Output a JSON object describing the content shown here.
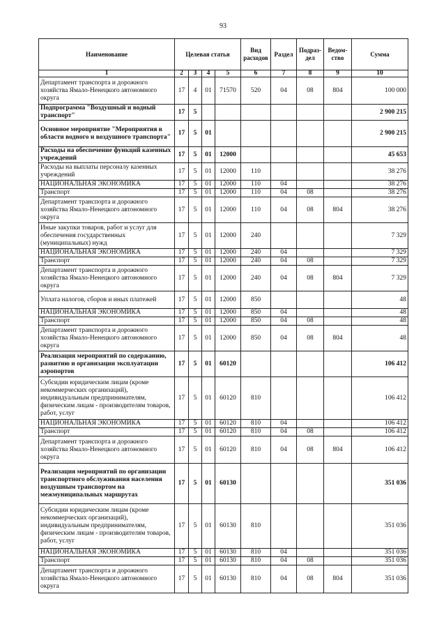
{
  "page_number": "93",
  "table": {
    "header": [
      "Наименование",
      "Целевая статья",
      "Вид\nрасходов",
      "Раздел",
      "Подраз-\nдел",
      "Ведом-\nство",
      "Сумма"
    ],
    "number_row": [
      "1",
      "2",
      "3",
      "4",
      "5",
      "6",
      "7",
      "8",
      "9",
      "10"
    ],
    "rows": [
      {
        "bold": false,
        "cells": [
          "Департамент транспорта и дорожного хозяйства Ямало-Ненецкого автономного округа",
          "17",
          "4",
          "01",
          "71570",
          "520",
          "04",
          "08",
          "804",
          "100 000"
        ]
      },
      {
        "bold": true,
        "cells": [
          "Подпрограмма \"Воздушный и водный транспорт\"",
          "17",
          "5",
          null,
          null,
          null,
          null,
          null,
          null,
          "2 900 215"
        ]
      },
      {
        "bold": true,
        "cells": [
          "Основное мероприятие \"Мероприятия в области водного и воздушного транспорта\"",
          "17",
          "5",
          "01",
          null,
          null,
          null,
          null,
          null,
          "2 900 215"
        ]
      },
      {
        "bold": true,
        "cells": [
          "Расходы на обеспечение функций казенных учреждений",
          "17",
          "5",
          "01",
          "12000",
          null,
          null,
          null,
          null,
          "45 653"
        ]
      },
      {
        "bold": false,
        "cells": [
          "Расходы на выплаты персоналу казенных учреждений",
          "17",
          "5",
          "01",
          "12000",
          "110",
          null,
          null,
          null,
          "38 276"
        ]
      },
      {
        "bold": false,
        "cells": [
          "НАЦИОНАЛЬНАЯ ЭКОНОМИКА",
          "17",
          "5",
          "01",
          "12000",
          "110",
          "04",
          null,
          null,
          "38 276"
        ]
      },
      {
        "bold": false,
        "cells": [
          "Транспорт",
          "17",
          "5",
          "01",
          "12000",
          "110",
          "04",
          "08",
          null,
          "38 276"
        ]
      },
      {
        "bold": false,
        "cells": [
          "Департамент транспорта и дорожного хозяйства Ямало-Ненецкого автономного округа",
          "17",
          "5",
          "01",
          "12000",
          "110",
          "04",
          "08",
          "804",
          "38 276"
        ]
      },
      {
        "bold": false,
        "cells": [
          "Иные закупки товаров, работ и услуг для обеспечения государственных (муниципальных) нужд",
          "17",
          "5",
          "01",
          "12000",
          "240",
          null,
          null,
          null,
          "7 329"
        ]
      },
      {
        "bold": false,
        "cells": [
          "НАЦИОНАЛЬНАЯ ЭКОНОМИКА",
          "17",
          "5",
          "01",
          "12000",
          "240",
          "04",
          null,
          null,
          "7 329"
        ]
      },
      {
        "bold": false,
        "cells": [
          "Транспорт",
          "17",
          "5",
          "01",
          "12000",
          "240",
          "04",
          "08",
          null,
          "7 329"
        ]
      },
      {
        "bold": false,
        "cells": [
          "Департамент транспорта и дорожного хозяйства Ямало-Ненецкого автономного округа",
          "17",
          "5",
          "01",
          "12000",
          "240",
          "04",
          "08",
          "804",
          "7 329"
        ]
      },
      {
        "bold": false,
        "cells": [
          "Уплата налогов, сборов и иных платежей",
          "17",
          "5",
          "01",
          "12000",
          "850",
          null,
          null,
          null,
          "48"
        ]
      },
      {
        "bold": false,
        "cells": [
          "НАЦИОНАЛЬНАЯ ЭКОНОМИКА",
          "17",
          "5",
          "01",
          "12000",
          "850",
          "04",
          null,
          null,
          "48"
        ]
      },
      {
        "bold": false,
        "cells": [
          "Транспорт",
          "17",
          "5",
          "01",
          "12000",
          "850",
          "04",
          "08",
          null,
          "48"
        ]
      },
      {
        "bold": false,
        "cells": [
          "Департамент транспорта и дорожного хозяйства Ямало-Ненецкого автономного округа",
          "17",
          "5",
          "01",
          "12000",
          "850",
          "04",
          "08",
          "804",
          "48"
        ]
      },
      {
        "bold": true,
        "cells": [
          "Реализация мероприятий по содержанию, развитию и организации эксплуатации аэропортов",
          "17",
          "5",
          "01",
          "60120",
          null,
          null,
          null,
          null,
          "106 412"
        ]
      },
      {
        "bold": false,
        "cells": [
          "Субсидии юридическим лицам (кроме некоммерческих организаций), индивидуальным предпринимателям, физическим лицам - производителям товаров, работ, услуг",
          "17",
          "5",
          "01",
          "60120",
          "810",
          null,
          null,
          null,
          "106 412"
        ]
      },
      {
        "bold": false,
        "cells": [
          "НАЦИОНАЛЬНАЯ ЭКОНОМИКА",
          "17",
          "5",
          "01",
          "60120",
          "810",
          "04",
          null,
          null,
          "106 412"
        ]
      },
      {
        "bold": false,
        "cells": [
          "Транспорт",
          "17",
          "5",
          "01",
          "60120",
          "810",
          "04",
          "08",
          null,
          "106 412"
        ]
      },
      {
        "bold": false,
        "cells": [
          "Департамент транспорта и дорожного хозяйства Ямало-Ненецкого автономного округа",
          "17",
          "5",
          "01",
          "60120",
          "810",
          "04",
          "08",
          "804",
          "106 412"
        ]
      },
      {
        "bold": true,
        "cells": [
          "Реализация мероприятий по организации транспортного обслуживания населения воздушным транспортом на межмуниципальных маршрутах",
          "17",
          "5",
          "01",
          "60130",
          null,
          null,
          null,
          null,
          "351 036"
        ]
      },
      {
        "bold": false,
        "cells": [
          "Субсидии юридическим лицам (кроме некоммерческих организаций), индивидуальным предпринимателям, физическим лицам - производителям товаров, работ, услуг",
          "17",
          "5",
          "01",
          "60130",
          "810",
          null,
          null,
          null,
          "351 036"
        ]
      },
      {
        "bold": false,
        "cells": [
          "НАЦИОНАЛЬНАЯ ЭКОНОМИКА",
          "17",
          "5",
          "01",
          "60130",
          "810",
          "04",
          null,
          null,
          "351 036"
        ]
      },
      {
        "bold": false,
        "cells": [
          "Транспорт",
          "17",
          "5",
          "01",
          "60130",
          "810",
          "04",
          "08",
          null,
          "351 036"
        ]
      },
      {
        "bold": false,
        "cells": [
          "Департамент транспорта и дорожного хозяйства Ямало-Ненецкого автономного округа",
          "17",
          "5",
          "01",
          "60130",
          "810",
          "04",
          "08",
          "804",
          "351 036"
        ]
      }
    ]
  }
}
